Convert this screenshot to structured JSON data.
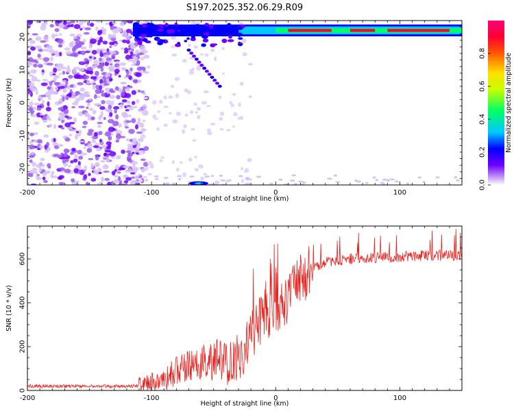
{
  "title": "S197.2025.352.06.29.R09",
  "chart_data": [
    {
      "type": "heatmap",
      "xlabel": "Height of straight line (km)",
      "ylabel": "Frequency (Hz)",
      "xlim": [
        -200,
        150
      ],
      "ylim": [
        -25,
        25
      ],
      "xticks": [
        -200,
        -100,
        0,
        100
      ],
      "yticks": [
        -20,
        -10,
        0,
        10,
        20
      ],
      "colorbar": {
        "label": "Normalized spectral amplitude",
        "range": [
          0,
          1
        ],
        "ticks": [
          "0.0",
          "0.2",
          "0.4",
          "0.6",
          "0.8"
        ],
        "colors": [
          "#ffffff",
          "#c9a8f5",
          "#6f00ff",
          "#0000ff",
          "#00c8ff",
          "#00ff66",
          "#c8ff00",
          "#ffe000",
          "#ff5a00",
          "#ff0033",
          "#ff0077"
        ]
      },
      "features": [
        {
          "name": "scattered noise",
          "x_range": [
            -200,
            -110
          ],
          "y_range": [
            -25,
            25
          ],
          "amplitude": 0.1
        },
        {
          "name": "carrier line",
          "x_range": [
            -115,
            150
          ],
          "y": 22,
          "amplitude": 0.9
        },
        {
          "name": "diagonal streak",
          "x_range": [
            -70,
            -45
          ],
          "y_range": [
            16,
            5
          ],
          "amplitude": 0.2
        }
      ]
    },
    {
      "type": "line",
      "xlabel": "Height of straight line (km)",
      "ylabel": "SNR (10 * v/v)",
      "xlim": [
        -200,
        150
      ],
      "ylim": [
        0,
        750
      ],
      "xticks": [
        -200,
        -100,
        0,
        100
      ],
      "yticks": [
        0,
        200,
        400,
        600
      ],
      "grid": false,
      "color": "#e8201c",
      "series": [
        {
          "x": [
            -200,
            -180,
            -160,
            -140,
            -120,
            -110,
            -100,
            -95,
            -90,
            -85,
            -80,
            -75,
            -70,
            -65,
            -60,
            -55,
            -50,
            -45,
            -40,
            -35,
            -30,
            -25,
            -20,
            -15,
            -10,
            -5,
            0,
            5,
            10,
            15,
            20,
            25,
            30,
            40,
            50,
            60,
            80,
            100,
            120,
            140,
            150
          ],
          "y": [
            20,
            18,
            20,
            19,
            20,
            22,
            35,
            45,
            55,
            70,
            90,
            100,
            105,
            110,
            120,
            130,
            140,
            135,
            130,
            125,
            150,
            180,
            240,
            300,
            340,
            360,
            380,
            400,
            430,
            460,
            500,
            530,
            560,
            585,
            595,
            600,
            605,
            610,
            615,
            615,
            620
          ]
        }
      ]
    }
  ]
}
